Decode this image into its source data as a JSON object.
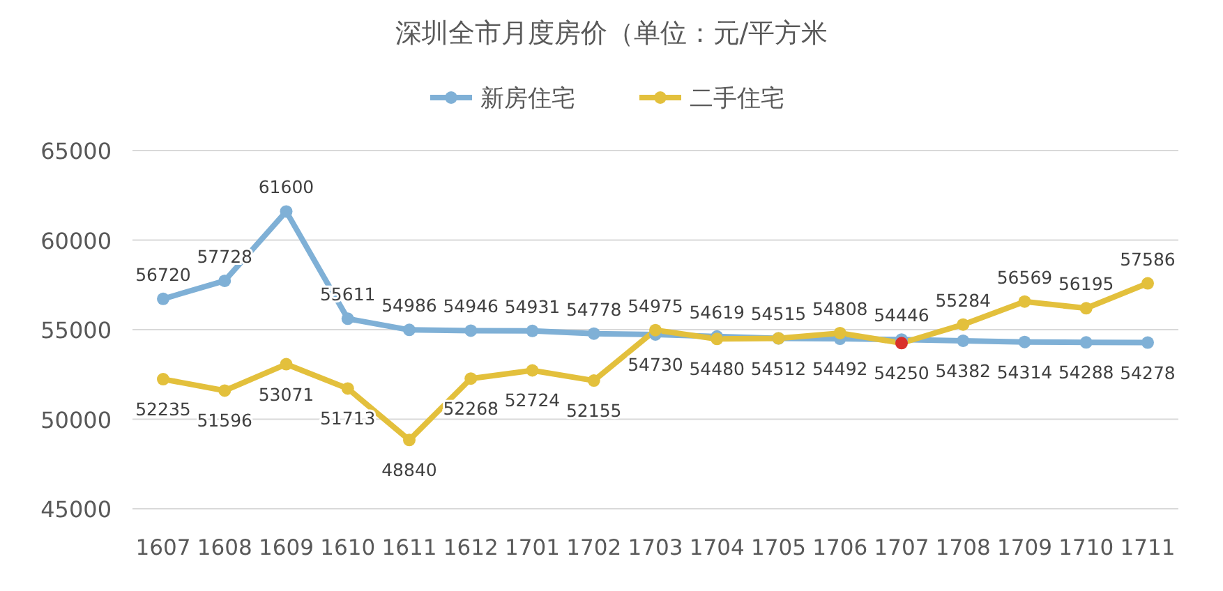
{
  "chart_data": {
    "type": "line",
    "title": "深圳全市月度房价（单位：元/平方米",
    "categories": [
      "1607",
      "1608",
      "1609",
      "1610",
      "1611",
      "1612",
      "1701",
      "1702",
      "1703",
      "1704",
      "1705",
      "1706",
      "1707",
      "1708",
      "1709",
      "1710",
      "1711"
    ],
    "series": [
      {
        "name": "新房住宅",
        "color": "#7fb0d6",
        "values": [
          56720,
          57728,
          61600,
          55611,
          54986,
          54946,
          54931,
          54778,
          54730,
          54619,
          54512,
          54492,
          54446,
          54382,
          54314,
          54288,
          54278
        ]
      },
      {
        "name": "二手住宅",
        "color": "#e3c03c",
        "colors": [
          "#e3c03c",
          "#e3c03c",
          "#e3c03c",
          "#e3c03c",
          "#e3c03c",
          "#e3c03c",
          "#e3c03c",
          "#e3c03c",
          "#e3c03c",
          "#e3c03c",
          "#e3c03c",
          "#e3c03c",
          "#d9302a",
          "#e3c03c",
          "#e3c03c",
          "#e3c03c",
          "#e3c03c"
        ],
        "values": [
          52235,
          51596,
          53071,
          51713,
          48840,
          52268,
          52724,
          52155,
          54975,
          54480,
          54515,
          54808,
          54250,
          55284,
          56569,
          56195,
          57586
        ]
      }
    ],
    "ylim": [
      45000,
      65000
    ],
    "yticks": [
      45000,
      50000,
      55000,
      60000,
      65000
    ],
    "grid": "y",
    "legend": "top",
    "marker": "circle",
    "line_style": "solid",
    "data_labels": true
  }
}
